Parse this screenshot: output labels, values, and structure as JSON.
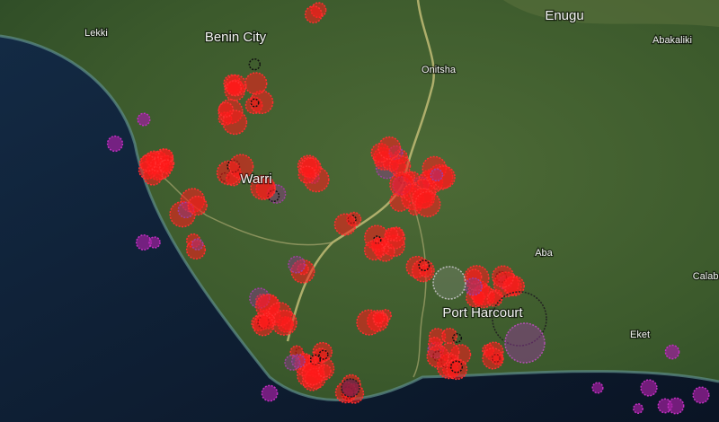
{
  "map": {
    "labels": [
      "Lekki",
      "Benin City",
      "Onitsha",
      "Enugu",
      "Abakaliki",
      "Warri",
      "Aba",
      "Port Harcourt",
      "Eket",
      "Calabar"
    ]
  }
}
